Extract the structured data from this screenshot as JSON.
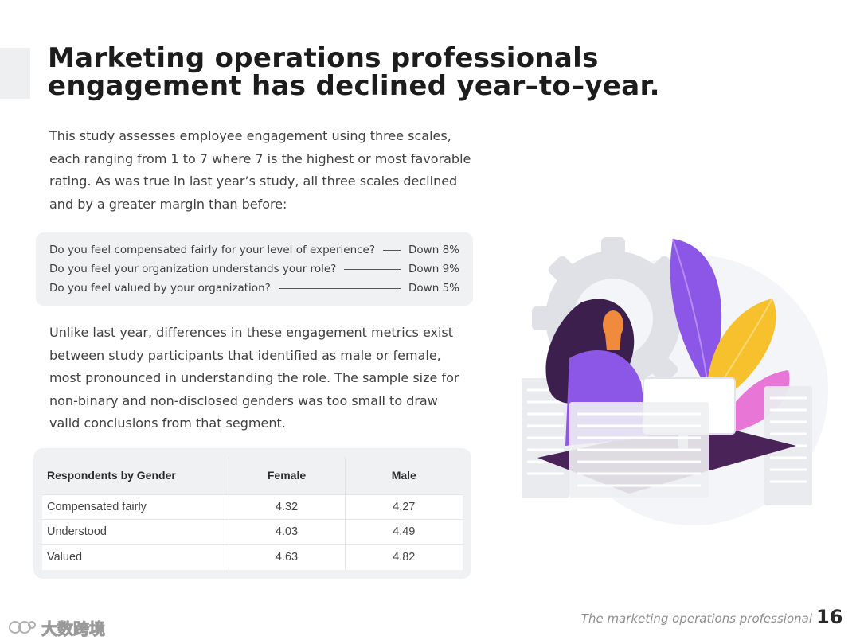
{
  "title": "Marketing operations professionals engagement has declined year–to–year.",
  "intro": "This study assesses employee engagement using three scales, each ranging from 1 to 7 where 7 is the highest or most favorable rating. As was true in last year’s study, all three scales declined and by a greater margin than before:",
  "questions": [
    {
      "text": "Do you feel compensated fairly for your level of experience?",
      "value": "Down 8%"
    },
    {
      "text": "Do you feel your organization understands your role?",
      "value": "Down 9%"
    },
    {
      "text": "Do you feel valued by your organization?",
      "value": "Down 5%"
    }
  ],
  "unlike": "Unlike last year, differences in these engagement metrics exist between study participants that identified as male or female, most pronounced in understanding the role. The sample size for non-binary and non-disclosed genders was too small to draw valid conclusions from that segment.",
  "table": {
    "headers": [
      "Respondents by Gender",
      "Female",
      "Male"
    ],
    "rows": [
      [
        "Compensated fairly",
        "4.32",
        "4.27"
      ],
      [
        "Understood",
        "4.03",
        "4.49"
      ],
      [
        "Valued",
        "4.63",
        "4.82"
      ]
    ]
  },
  "footer": {
    "text": "The marketing operations professional",
    "page": "16"
  },
  "watermark": {
    "text": "大数跨境",
    "icon": "watermark-logo-icon"
  },
  "illustration": {
    "icon": "woman-at-computer-illustration",
    "colors": {
      "purple": "#8c57e6",
      "dark_purple": "#4a2459",
      "yellow": "#f7c12e",
      "pink": "#e776d6",
      "gear": "#dfe1e6"
    }
  }
}
